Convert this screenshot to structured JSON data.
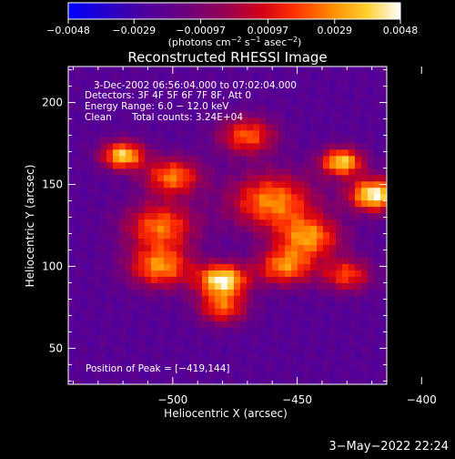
{
  "chart_data": {
    "type": "heatmap",
    "title": "Reconstructed RHESSI Image",
    "xlabel": "Heliocentric X (arcsec)",
    "ylabel": "Heliocentric Y (arcsec)",
    "xlim": [
      -542,
      -414
    ],
    "ylim": [
      28,
      222
    ],
    "x_ticks": [
      -500,
      -450,
      -400
    ],
    "y_ticks": [
      50,
      100,
      150,
      200
    ],
    "x_tick_labels": [
      "−500",
      "−450",
      "−400"
    ],
    "y_tick_labels": [
      "50",
      "100",
      "150",
      "200"
    ],
    "colorbar": {
      "min": -0.0048,
      "max": 0.0048,
      "ticks": [
        -0.0048,
        -0.0029,
        -0.00097,
        0.00097,
        0.0029,
        0.0048
      ],
      "tick_labels": [
        "−0.0048",
        "−0.0029",
        "−0.00097",
        "0.00097",
        "0.0029",
        "0.0048"
      ],
      "label_main": "(photons cm",
      "label_sup1": "−2",
      "label_mid1": " s",
      "label_sup2": "−1",
      "label_mid2": " asec",
      "label_sup3": "−2",
      "label_end": ")",
      "colormap": [
        "#0000ff",
        "#2200cc",
        "#4b0082",
        "#7a0070",
        "#c00020",
        "#ff3000",
        "#ff8000",
        "#ffc000",
        "#ffff40",
        "#ffffff"
      ]
    },
    "annotations": {
      "time_range": "3-Dec-2002 06:56:04.000 to 07:02:04.000",
      "detectors": "Detectors: 3F 4F 5F 6F 7F 8F, Att 0",
      "energy_range": "Energy Range: 6.0 − 12.0 keV",
      "method": "Clean",
      "total_counts": "Total counts: 3.24E+04",
      "peak_position": "Position of Peak = [−419,144]"
    },
    "peak": {
      "x": -419,
      "y": 144,
      "value": 0.0048
    },
    "sources": [
      {
        "x": -419,
        "y": 144,
        "amp": 0.0048,
        "sigma": 7
      },
      {
        "x": -432,
        "y": 164,
        "amp": 0.004,
        "sigma": 6
      },
      {
        "x": -480,
        "y": 92,
        "amp": 0.0046,
        "sigma": 7
      },
      {
        "x": -505,
        "y": 100,
        "amp": 0.0028,
        "sigma": 9
      },
      {
        "x": -520,
        "y": 168,
        "amp": 0.004,
        "sigma": 6
      },
      {
        "x": -500,
        "y": 155,
        "amp": 0.0026,
        "sigma": 8
      },
      {
        "x": -460,
        "y": 140,
        "amp": 0.0028,
        "sigma": 12
      },
      {
        "x": -445,
        "y": 118,
        "amp": 0.0026,
        "sigma": 9
      },
      {
        "x": -455,
        "y": 100,
        "amp": 0.0026,
        "sigma": 8
      },
      {
        "x": -505,
        "y": 125,
        "amp": 0.0024,
        "sigma": 10
      },
      {
        "x": -470,
        "y": 180,
        "amp": 0.0022,
        "sigma": 8
      },
      {
        "x": -480,
        "y": 75,
        "amp": 0.002,
        "sigma": 7
      },
      {
        "x": -430,
        "y": 95,
        "amp": 0.0018,
        "sigma": 7
      }
    ],
    "background_level": -0.0022
  },
  "footer": {
    "date": "3−May−2022 22:24"
  }
}
